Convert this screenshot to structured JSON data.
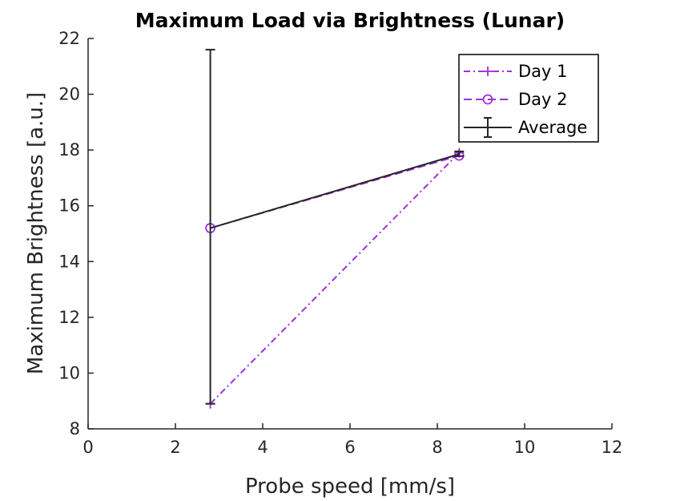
{
  "chart_data": {
    "type": "line",
    "title": "Maximum Load via Brightness (Lunar)",
    "xlabel": "Probe speed [mm/s]",
    "ylabel": "Maximum Brightness [a.u.]",
    "xlim": [
      0,
      12
    ],
    "ylim": [
      8,
      22
    ],
    "xticks": [
      "0",
      "2",
      "4",
      "6",
      "8",
      "10",
      "12"
    ],
    "yticks": [
      "8",
      "10",
      "12",
      "14",
      "16",
      "18",
      "20",
      "22"
    ],
    "grid": false,
    "legend_position": "top-right",
    "series": [
      {
        "name": "Day 1",
        "x": [
          2.8,
          8.5
        ],
        "y": [
          8.9,
          17.9
        ],
        "color": "#a030d8",
        "line_style": "dash-dot",
        "marker": "plus"
      },
      {
        "name": "Day 2",
        "x": [
          2.8,
          8.5
        ],
        "y": [
          15.2,
          17.8
        ],
        "color": "#a030d8",
        "line_style": "dashed",
        "marker": "circle"
      },
      {
        "name": "Average",
        "x": [
          2.8,
          8.5
        ],
        "y": [
          15.2,
          17.85
        ],
        "err_low": [
          8.9,
          17.78
        ],
        "err_high": [
          21.6,
          17.95
        ],
        "color": "#262626",
        "line_style": "solid",
        "marker": "errorbar"
      }
    ]
  }
}
